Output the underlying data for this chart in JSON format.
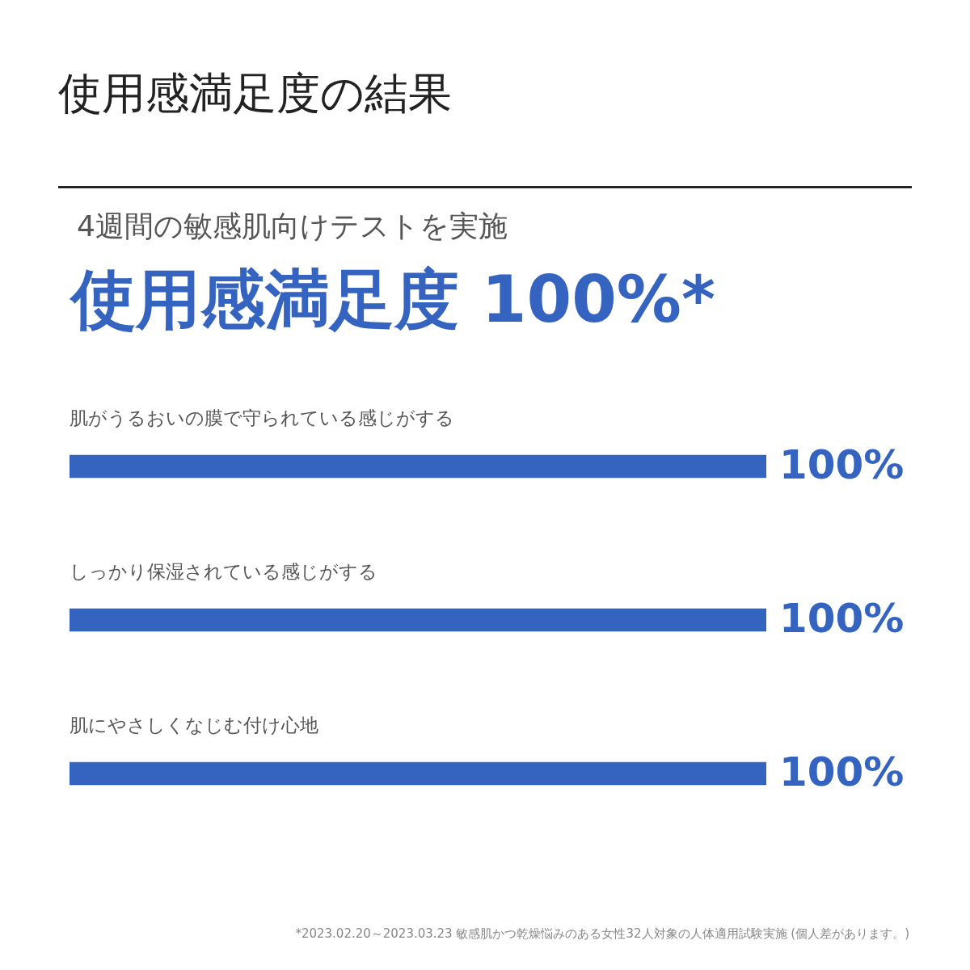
{
  "chart_data": {
    "type": "bar",
    "orientation": "horizontal",
    "title": "使用感満足度の結果",
    "subtitle": "4週間の敏感肌向けテストを実施",
    "annotations": [
      "使用感満足度 100%*",
      "*2023.02.20～2023.03.23 敏感肌かつ乾燥悩みのある女性32人対象の人体適用試験実施 (個人差があります。)"
    ],
    "categories": [
      "肌がうるおいの膜で守られている感じがする",
      "しっかり保湿されている感じがする",
      "肌にやさしくなじむ付け心地"
    ],
    "values": [
      100,
      100,
      100
    ],
    "value_labels": [
      "100%",
      "100%",
      "100%"
    ],
    "color": "#3464c0",
    "legend": false,
    "tick_labels": "y"
  }
}
